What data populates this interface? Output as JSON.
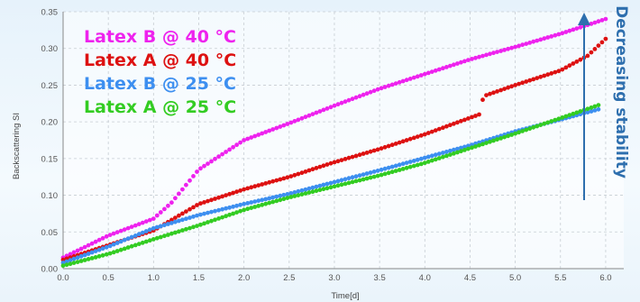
{
  "colors": {
    "latex_b_40": "#ee22ee",
    "latex_a_40": "#dd1111",
    "latex_b_25": "#3d8ff0",
    "latex_a_25": "#33cc22",
    "annotation": "#2e6fae"
  },
  "chart_data": {
    "type": "scatter",
    "title": "",
    "xlabel": "Time[d]",
    "ylabel": "Backscattering SI",
    "xlim": [
      0.0,
      6.2
    ],
    "ylim": [
      0.0,
      0.35
    ],
    "xticks": [
      "0.0",
      "0.5",
      "1.0",
      "1.5",
      "2.0",
      "2.5",
      "3.0",
      "3.5",
      "4.0",
      "4.5",
      "5.0",
      "5.5",
      "6.0"
    ],
    "yticks": [
      "0.00",
      "0.05",
      "0.10",
      "0.15",
      "0.20",
      "0.25",
      "0.30",
      "0.35"
    ],
    "grid": true,
    "legend_position": "top-left",
    "series": [
      {
        "name": "Latex B @ 40 °C",
        "color": "#ee22ee",
        "x": [
          0.0,
          0.5,
          1.0,
          1.2,
          1.5,
          2.0,
          2.5,
          3.0,
          3.5,
          4.0,
          4.5,
          5.0,
          5.5,
          6.0
        ],
        "y": [
          0.015,
          0.045,
          0.068,
          0.09,
          0.135,
          0.175,
          0.198,
          0.222,
          0.245,
          0.265,
          0.285,
          0.302,
          0.32,
          0.34
        ]
      },
      {
        "name": "Latex A @ 40 °C",
        "color": "#dd1111",
        "x": [
          0.0,
          0.5,
          1.0,
          1.5,
          2.0,
          2.5,
          3.0,
          3.5,
          4.0,
          4.6,
          4.65,
          5.0,
          5.5,
          5.8,
          6.0
        ],
        "y": [
          0.012,
          0.032,
          0.052,
          0.088,
          0.108,
          0.125,
          0.145,
          0.163,
          0.183,
          0.21,
          0.235,
          0.25,
          0.27,
          0.29,
          0.313
        ]
      },
      {
        "name": "Latex B @ 25 °C",
        "color": "#3d8ff0",
        "x": [
          0.0,
          0.5,
          1.0,
          1.5,
          2.0,
          2.5,
          3.0,
          3.5,
          4.0,
          4.5,
          5.0,
          5.5,
          5.95
        ],
        "y": [
          0.008,
          0.03,
          0.055,
          0.073,
          0.088,
          0.102,
          0.118,
          0.134,
          0.151,
          0.168,
          0.187,
          0.203,
          0.218
        ]
      },
      {
        "name": "Latex A @ 25 °C",
        "color": "#33cc22",
        "x": [
          0.0,
          0.5,
          1.0,
          1.5,
          2.0,
          2.5,
          3.0,
          3.5,
          4.0,
          4.5,
          5.0,
          5.5,
          5.95
        ],
        "y": [
          0.004,
          0.02,
          0.04,
          0.059,
          0.08,
          0.097,
          0.112,
          0.127,
          0.144,
          0.164,
          0.184,
          0.205,
          0.224
        ]
      }
    ],
    "annotation": {
      "text": "Decreasing stability",
      "color": "#2e6fae",
      "arrow": "up"
    }
  }
}
